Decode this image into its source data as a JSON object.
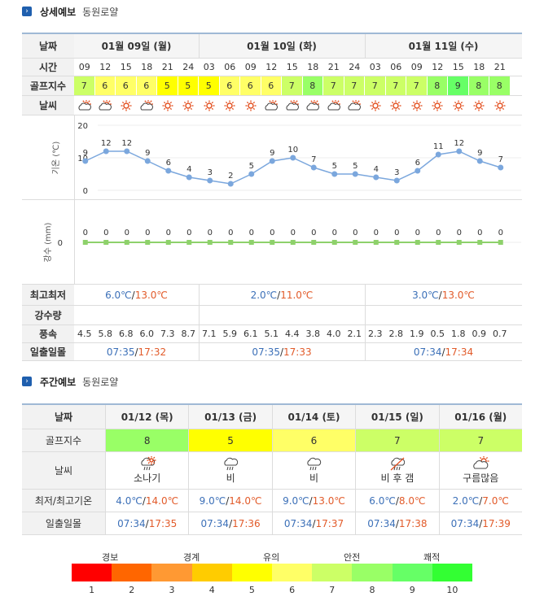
{
  "section1": {
    "title": "상세예보",
    "location": "동원로얄"
  },
  "section2": {
    "title": "주간예보",
    "location": "동원로얄"
  },
  "detail": {
    "labels": {
      "date": "날짜",
      "time": "시간",
      "golf": "골프지수",
      "weather": "날씨",
      "maxmin": "최고최저",
      "precip": "강수량",
      "wind": "풍속",
      "sun": "일출일몰"
    },
    "dates": [
      "01월 09일 (월)",
      "01월 10일 (화)",
      "01월 11일 (수)"
    ],
    "times": [
      "09",
      "12",
      "15",
      "18",
      "21",
      "24",
      "03",
      "06",
      "09",
      "12",
      "15",
      "18",
      "21",
      "24",
      "03",
      "06",
      "09",
      "12",
      "15",
      "18",
      "21"
    ],
    "golf": [
      "7",
      "6",
      "6",
      "6",
      "5",
      "5",
      "5",
      "6",
      "6",
      "6",
      "7",
      "8",
      "7",
      "7",
      "7",
      "7",
      "7",
      "8",
      "9",
      "8",
      "8"
    ],
    "weather": [
      "partly",
      "partly",
      "sunny",
      "partly",
      "sunny",
      "sunny",
      "sunny",
      "sunny",
      "sunny",
      "partly",
      "partly",
      "partly",
      "partly",
      "partly",
      "sunny",
      "sunny",
      "sunny",
      "sunny",
      "sunny",
      "sunny",
      "sunny"
    ],
    "temp_axis_label": "기온 (℃)",
    "temp_ticks": [
      "20",
      "10",
      "0"
    ],
    "temps": [
      9,
      12,
      12,
      9,
      6,
      4,
      3,
      2,
      5,
      9,
      10,
      7,
      5,
      5,
      4,
      3,
      6,
      11,
      12,
      9,
      7
    ],
    "precip_axis_label": "강수 (mm)",
    "precip_ticks": [
      "0"
    ],
    "precip": [
      0,
      0,
      0,
      0,
      0,
      0,
      0,
      0,
      0,
      0,
      0,
      0,
      0,
      0,
      0,
      0,
      0,
      0,
      0,
      0,
      0
    ],
    "ranges": [
      {
        "min": "6.0℃",
        "sep": "/",
        "max": "13.0℃"
      },
      {
        "min": "2.0℃",
        "sep": "/",
        "max": "11.0℃"
      },
      {
        "min": "3.0℃",
        "sep": "/",
        "max": "13.0℃"
      }
    ],
    "wind": [
      "4.5",
      "5.8",
      "6.8",
      "6.0",
      "7.3",
      "8.7",
      "7.1",
      "5.9",
      "6.1",
      "5.1",
      "4.4",
      "3.8",
      "4.0",
      "2.1",
      "2.3",
      "2.8",
      "1.9",
      "0.5",
      "1.8",
      "0.9",
      "0.7"
    ],
    "sun": [
      {
        "rise": "07:35",
        "sep": "/",
        "set": "17:32"
      },
      {
        "rise": "07:35",
        "sep": "/",
        "set": "17:33"
      },
      {
        "rise": "07:34",
        "sep": "/",
        "set": "17:34"
      }
    ]
  },
  "weekly": {
    "labels": {
      "date": "날짜",
      "golf": "골프지수",
      "weather": "날씨",
      "temp": "최저/최고기온",
      "sun": "일출일몰"
    },
    "days": [
      {
        "date": "01/12 (목)",
        "golf": "8",
        "wx": "소나기",
        "icon": "shower",
        "min": "4.0℃",
        "max": "14.0℃",
        "rise": "07:34",
        "set": "17:35"
      },
      {
        "date": "01/13 (금)",
        "golf": "5",
        "wx": "비",
        "icon": "rain",
        "min": "9.0℃",
        "max": "14.0℃",
        "rise": "07:34",
        "set": "17:36"
      },
      {
        "date": "01/14 (토)",
        "golf": "6",
        "wx": "비",
        "icon": "rain",
        "min": "9.0℃",
        "max": "13.0℃",
        "rise": "07:34",
        "set": "17:37"
      },
      {
        "date": "01/15 (일)",
        "golf": "7",
        "wx": "비 후 갬",
        "icon": "rain-then-clear",
        "min": "6.0℃",
        "max": "8.0℃",
        "rise": "07:34",
        "set": "17:38"
      },
      {
        "date": "01/16 (월)",
        "golf": "7",
        "wx": "구름많음",
        "icon": "mostly-cloudy",
        "min": "2.0℃",
        "max": "7.0℃",
        "rise": "07:34",
        "set": "17:39"
      }
    ]
  },
  "legend": {
    "top_labels": [
      "경보",
      "경계",
      "유의",
      "안전",
      "쾌적"
    ],
    "numbers": [
      "1",
      "2",
      "3",
      "4",
      "5",
      "6",
      "7",
      "8",
      "9",
      "10"
    ],
    "colors": [
      "#ff0000",
      "#ff6600",
      "#ff9933",
      "#ffcc00",
      "#ffff00",
      "#ffff66",
      "#ccff66",
      "#99ff66",
      "#66ff66",
      "#33ff33"
    ]
  },
  "golf_colors": {
    "5": "#ffff00",
    "6": "#ffff66",
    "7": "#ccff66",
    "8": "#99ff66",
    "9": "#66ff66"
  },
  "colors": {
    "line": "#7ba7dd",
    "precip": "#8ed16b",
    "header_border": "#9fb9d5"
  }
}
